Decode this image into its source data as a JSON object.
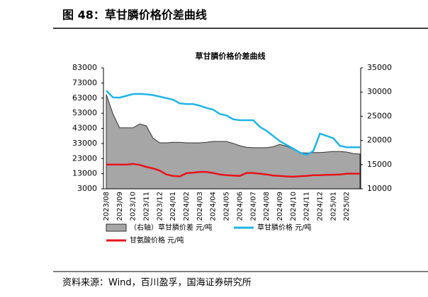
{
  "header": {
    "title": "图 48：草甘膦价格价差曲线"
  },
  "chart_data": {
    "type": "line",
    "title": "草甘膦价格价差曲线",
    "categories": [
      "2023/08",
      null,
      "2023/09",
      null,
      "2023/10",
      null,
      "2023/11",
      null,
      "2023/12",
      null,
      "2024/01",
      null,
      "2024/02",
      null,
      "2024/03",
      null,
      "2024/04",
      null,
      "2024/05",
      null,
      "2024/06",
      null,
      "2024/07",
      null,
      "2024/08",
      null,
      "2024/09",
      null,
      "2024/10",
      null,
      "2024/11",
      null,
      "2024/12",
      null,
      "2025/01",
      null,
      "2025/02",
      null,
      null
    ],
    "series": [
      {
        "name": "（右轴）草甘膦价差  元/吨",
        "type": "area",
        "axis": "y2",
        "color": "#a6a6a6",
        "values": [
          29500,
          25500,
          22600,
          22600,
          22600,
          23400,
          23000,
          20500,
          19500,
          19500,
          19600,
          19600,
          19500,
          19500,
          19500,
          19600,
          19800,
          19800,
          19800,
          19400,
          18900,
          18600,
          18500,
          18500,
          18500,
          18700,
          19200,
          18800,
          18200,
          17500,
          17400,
          17500,
          17500,
          17600,
          17700,
          17700,
          17600,
          17300,
          17200
        ]
      },
      {
        "name": "草甘膦价格  元/吨",
        "type": "line",
        "axis": "y",
        "color": "#1fb4e8",
        "values": [
          68000,
          63500,
          63300,
          64500,
          65700,
          65800,
          65500,
          65000,
          64000,
          63000,
          62000,
          59500,
          59100,
          59100,
          58000,
          56500,
          55400,
          52500,
          51500,
          49000,
          48400,
          48400,
          48400,
          44000,
          41400,
          38000,
          34500,
          32000,
          29600,
          27000,
          25400,
          28000,
          39500,
          38000,
          36500,
          31500,
          30500,
          30500,
          30500
        ]
      },
      {
        "name": "甘氨酸价格  元/吨",
        "type": "line",
        "axis": "y",
        "color": "#e8131b",
        "values": [
          19000,
          19000,
          19000,
          19000,
          19500,
          18800,
          17500,
          16500,
          15000,
          12500,
          11500,
          11200,
          13300,
          13700,
          14200,
          14200,
          13500,
          12500,
          12000,
          11800,
          11500,
          13500,
          13500,
          13000,
          12500,
          11800,
          11500,
          11200,
          11000,
          11300,
          11500,
          12000,
          12000,
          12200,
          12300,
          12500,
          13000,
          13000,
          13000
        ]
      }
    ],
    "ylim": [
      3000,
      83000
    ],
    "yticks": [
      3000,
      13000,
      23000,
      33000,
      43000,
      53000,
      63000,
      73000,
      83000
    ],
    "y2lim": [
      10000,
      35000
    ],
    "y2ticks": [
      10000,
      15000,
      20000,
      25000,
      30000,
      35000
    ]
  },
  "source": "资料来源：Wind，百川盈孚，国海证券研究所"
}
